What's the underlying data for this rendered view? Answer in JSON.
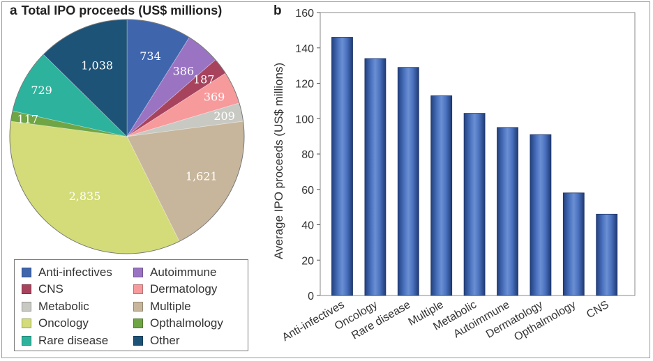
{
  "pie_panel": {
    "letter": "a",
    "title": "Total IPO proceeds (US$ millions)"
  },
  "bar_panel": {
    "letter": "b"
  },
  "chart_data": [
    {
      "type": "pie",
      "title": "Total IPO proceeds (US$ millions)",
      "slices": [
        {
          "label": "Anti-infectives",
          "value": 734,
          "color": "#3f66ad"
        },
        {
          "label": "Autoimmune",
          "value": 386,
          "color": "#9a74c3"
        },
        {
          "label": "CNS",
          "value": 187,
          "color": "#a8435e"
        },
        {
          "label": "Dermatology",
          "value": 369,
          "color": "#f79a9c"
        },
        {
          "label": "Metabolic",
          "value": 209,
          "color": "#c9c9c4"
        },
        {
          "label": "Multiple",
          "value": 1621,
          "color": "#c7b69c"
        },
        {
          "label": "Oncology",
          "value": 2835,
          "color": "#d3dc78"
        },
        {
          "label": "Opthalmology",
          "value": 117,
          "color": "#6fa545"
        },
        {
          "label": "Rare disease",
          "value": 729,
          "color": "#2db39d"
        },
        {
          "label": "Other",
          "value": 1038,
          "color": "#1e5378"
        }
      ],
      "data_labels": [
        "734",
        "386",
        "187",
        "369",
        "209",
        "1,621",
        "2,835",
        "117",
        "729",
        "1,038"
      ],
      "legend": {
        "placement": "bottom",
        "entries": [
          "Anti-infectives",
          "Autoimmune",
          "CNS",
          "Dermatology",
          "Metabolic",
          "Multiple",
          "Oncology",
          "Opthalmology",
          "Rare disease",
          "Other"
        ]
      }
    },
    {
      "type": "bar",
      "categories": [
        "Anti-infectives",
        "Oncology",
        "Rare disease",
        "Multiple",
        "Metabolic",
        "Autoimmune",
        "Dermatology",
        "Opthalmology",
        "CNS"
      ],
      "values": [
        146,
        134,
        129,
        113,
        103,
        95,
        91,
        58,
        46
      ],
      "ylabel": "Average IPO proceeds (US$ millions)",
      "xlabel": "",
      "ylim": [
        0,
        160
      ],
      "yticks": [
        0,
        20,
        40,
        60,
        80,
        100,
        120,
        140,
        160
      ],
      "bar_color": "#3a5ba4",
      "grid": false
    }
  ]
}
